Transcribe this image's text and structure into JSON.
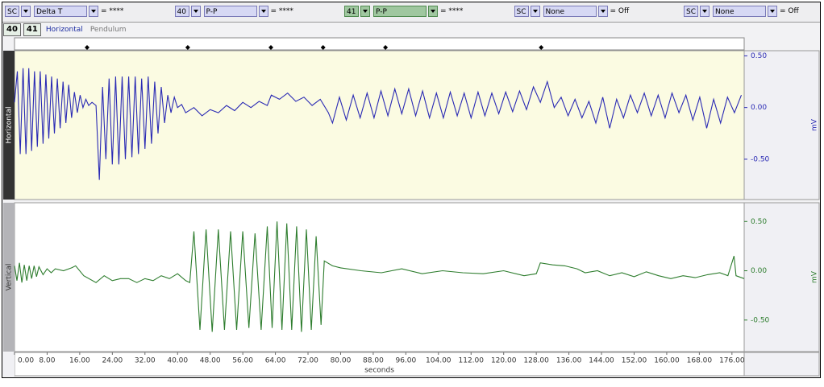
{
  "toolbar": [
    {
      "channel": "SC",
      "function": "Delta T",
      "result": "= ****"
    },
    {
      "channel": "40",
      "function": "P-P",
      "result": "= ****"
    },
    {
      "channel": "41",
      "function": "P-P",
      "result": "= ****"
    },
    {
      "channel": "SC",
      "function": "None",
      "result": "= Off"
    },
    {
      "channel": "SC",
      "function": "None",
      "result": "= Off"
    }
  ],
  "tabs": [
    "40",
    "41",
    "Horizontal",
    "Pendulum"
  ],
  "markers": [
    17.8,
    42.5,
    62.9,
    75.7,
    91.0,
    129.2
  ],
  "chart_data": [
    {
      "type": "line",
      "channel": "Horizontal",
      "ylabel": "mV",
      "color": "#2a2ab4",
      "xlim": [
        0,
        179
      ],
      "ylim": [
        -0.89,
        0.55
      ],
      "yticks": [
        {
          "value": 0.5,
          "label": "0.50"
        },
        {
          "value": 0,
          "label": "0.00"
        },
        {
          "value": -0.5,
          "label": "-0.50"
        }
      ],
      "x": [
        0,
        0.7,
        1.4,
        2.1,
        2.8,
        3.5,
        4.2,
        4.9,
        5.6,
        6.3,
        7.0,
        7.7,
        8.4,
        9.1,
        9.8,
        10.5,
        11.2,
        11.9,
        12.6,
        13.3,
        14.0,
        14.7,
        15.4,
        16.1,
        16.8,
        17.5,
        18.2,
        19,
        20,
        20.8,
        21.6,
        22.4,
        23.2,
        24.0,
        24.8,
        25.6,
        26.4,
        27.2,
        28.0,
        28.8,
        29.6,
        30.4,
        31.2,
        32.0,
        32.8,
        33.6,
        34.4,
        35.2,
        36.0,
        36.8,
        37.6,
        38.4,
        39.2,
        40,
        41,
        42,
        44,
        46,
        48,
        50,
        52,
        54,
        56,
        58,
        60,
        62,
        63,
        65,
        67,
        69,
        71,
        73,
        75,
        77,
        78,
        79.7,
        81.4,
        83.1,
        84.8,
        86.5,
        88.2,
        89.9,
        91.6,
        93.3,
        95.0,
        96.7,
        98.4,
        100.1,
        101.8,
        103.5,
        105.2,
        106.9,
        108.6,
        110.3,
        112.0,
        113.7,
        115.4,
        117.1,
        118.8,
        120.5,
        122.2,
        123.9,
        125.6,
        127.3,
        129.0,
        130.7,
        132.4,
        134.1,
        135.8,
        137.5,
        139.2,
        140.9,
        142.6,
        144.3,
        146.0,
        147.7,
        149.4,
        151.1,
        152.8,
        154.5,
        156.2,
        157.9,
        159.6,
        161.3,
        163.0,
        164.7,
        166.4,
        168.1,
        169.8,
        171.5,
        173.2,
        174.9,
        176.6,
        178.3
      ],
      "values": [
        0.05,
        0.35,
        -0.45,
        0.38,
        -0.45,
        0.38,
        -0.42,
        0.35,
        -0.38,
        0.35,
        -0.35,
        0.32,
        -0.3,
        0.3,
        -0.25,
        0.28,
        -0.2,
        0.25,
        -0.15,
        0.22,
        -0.1,
        0.15,
        -0.05,
        0.12,
        0.0,
        0.08,
        0.02,
        0.05,
        0.02,
        -0.7,
        0.2,
        -0.5,
        0.28,
        -0.55,
        0.3,
        -0.55,
        0.3,
        -0.5,
        0.3,
        -0.48,
        0.3,
        -0.45,
        0.28,
        -0.4,
        0.3,
        -0.35,
        0.25,
        -0.25,
        0.2,
        -0.15,
        0.12,
        -0.05,
        0.1,
        0.0,
        0.03,
        -0.05,
        0.0,
        -0.08,
        -0.02,
        -0.05,
        0.02,
        -0.03,
        0.05,
        0.0,
        0.06,
        0.02,
        0.12,
        0.08,
        0.14,
        0.06,
        0.1,
        0.02,
        0.08,
        -0.05,
        -0.15,
        0.1,
        -0.12,
        0.12,
        -0.1,
        0.14,
        -0.1,
        0.16,
        -0.08,
        0.18,
        -0.06,
        0.18,
        -0.08,
        0.16,
        -0.1,
        0.14,
        -0.1,
        0.15,
        -0.08,
        0.14,
        -0.1,
        0.15,
        -0.08,
        0.14,
        -0.06,
        0.15,
        -0.04,
        0.16,
        -0.02,
        0.2,
        0.05,
        0.25,
        0.0,
        0.1,
        -0.08,
        0.08,
        -0.1,
        0.06,
        -0.15,
        0.1,
        -0.2,
        0.08,
        -0.1,
        0.12,
        -0.05,
        0.14,
        -0.08,
        0.12,
        -0.1,
        0.14,
        -0.05,
        0.12,
        -0.12,
        0.1,
        -0.2,
        0.08,
        -0.15,
        0.1,
        -0.05,
        0.12
      ]
    },
    {
      "type": "line",
      "channel": "Vertical",
      "ylabel": "mV",
      "color": "#2e7d2e",
      "xlim": [
        0,
        179
      ],
      "ylim": [
        -0.82,
        0.69
      ],
      "yticks": [
        {
          "value": 0.5,
          "label": "0.50"
        },
        {
          "value": 0,
          "label": "0.00"
        },
        {
          "value": -0.5,
          "label": "-0.50"
        }
      ],
      "xticks": [
        {
          "value": 0,
          "label": "0.00"
        },
        {
          "value": 8,
          "label": "8.00"
        },
        {
          "value": 16,
          "label": "16.00"
        },
        {
          "value": 24,
          "label": "24.00"
        },
        {
          "value": 32,
          "label": "32.00"
        },
        {
          "value": 40,
          "label": "40.00"
        },
        {
          "value": 48,
          "label": "48.00"
        },
        {
          "value": 56,
          "label": "56.00"
        },
        {
          "value": 64,
          "label": "64.00"
        },
        {
          "value": 72,
          "label": "72.00"
        },
        {
          "value": 80,
          "label": "80.00"
        },
        {
          "value": 88,
          "label": "88.00"
        },
        {
          "value": 96,
          "label": "96.00"
        },
        {
          "value": 104,
          "label": "104.00"
        },
        {
          "value": 112,
          "label": "112.00"
        },
        {
          "value": 120,
          "label": "120.00"
        },
        {
          "value": 128,
          "label": "128.00"
        },
        {
          "value": 136,
          "label": "136.00"
        },
        {
          "value": 144,
          "label": "144.00"
        },
        {
          "value": 152,
          "label": "152.00"
        },
        {
          "value": 160,
          "label": "160.00"
        },
        {
          "value": 168,
          "label": "168.00"
        },
        {
          "value": 176,
          "label": "176.00"
        }
      ],
      "xlabel": "seconds",
      "x": [
        0,
        0.6,
        1.2,
        1.8,
        2.4,
        3,
        3.6,
        4.2,
        4.8,
        5.4,
        6,
        7,
        8,
        9,
        10,
        12,
        14,
        15,
        17,
        20,
        22,
        24,
        26,
        28,
        30,
        32,
        34,
        36,
        38,
        40,
        42,
        43,
        44,
        45.5,
        47,
        48.5,
        50,
        51.5,
        53,
        54.5,
        56,
        57.5,
        59,
        60.5,
        62,
        63.2,
        64.4,
        65.6,
        66.8,
        68,
        69.2,
        70.4,
        71.6,
        72.8,
        74,
        75.2,
        76,
        78,
        80,
        85,
        90,
        95,
        100,
        105,
        110,
        115,
        120,
        125,
        128,
        129,
        132,
        135,
        138,
        140,
        143,
        146,
        149,
        152,
        155,
        158,
        161,
        164,
        167,
        170,
        173,
        175,
        176.5,
        177,
        179
      ],
      "values": [
        0.05,
        -0.1,
        0.08,
        -0.12,
        0.06,
        -0.1,
        0.05,
        -0.08,
        0.05,
        -0.06,
        0.04,
        -0.04,
        0.02,
        -0.02,
        0.02,
        0.0,
        0.03,
        0.05,
        -0.05,
        -0.12,
        -0.05,
        -0.1,
        -0.08,
        -0.08,
        -0.12,
        -0.08,
        -0.1,
        -0.05,
        -0.08,
        -0.03,
        -0.1,
        -0.12,
        0.4,
        -0.6,
        0.42,
        -0.62,
        0.42,
        -0.6,
        0.4,
        -0.6,
        0.4,
        -0.58,
        0.38,
        -0.6,
        0.45,
        -0.58,
        0.5,
        -0.6,
        0.48,
        -0.6,
        0.45,
        -0.62,
        0.42,
        -0.6,
        0.35,
        -0.55,
        0.1,
        0.05,
        0.03,
        0.0,
        -0.02,
        0.02,
        -0.03,
        0.0,
        -0.02,
        -0.03,
        0.0,
        -0.05,
        -0.03,
        0.08,
        0.06,
        0.05,
        0.02,
        -0.02,
        0.0,
        -0.05,
        -0.02,
        -0.06,
        -0.01,
        -0.05,
        -0.08,
        -0.05,
        -0.07,
        -0.04,
        -0.02,
        -0.05,
        0.15,
        -0.05,
        -0.08
      ]
    }
  ]
}
